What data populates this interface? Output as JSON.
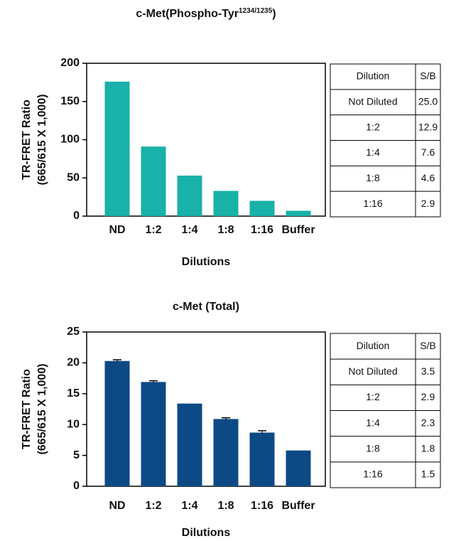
{
  "chart_data": [
    {
      "type": "bar",
      "title": "c-Met(Phospho-Tyr",
      "title_superscript": "1234/1235",
      "title_end": ")",
      "ylabel": [
        "TR-FRET Ratio",
        "(665/615 X 1,000)"
      ],
      "xlabel": "Dilutions",
      "categories": [
        "ND",
        "1:2",
        "1:4",
        "1:8",
        "1:16",
        "Buffer"
      ],
      "values": [
        176,
        91,
        53,
        33,
        20,
        7
      ],
      "color": "#19b1a8",
      "ylim": [
        0,
        200
      ],
      "yticks": [
        0,
        50,
        100,
        150,
        200
      ],
      "table": {
        "header": [
          "Dilution",
          "S/B"
        ],
        "rows": [
          [
            "Not Diluted",
            "25.0"
          ],
          [
            "1:2",
            "12.9"
          ],
          [
            "1:4",
            "7.6"
          ],
          [
            "1:8",
            "4.6"
          ],
          [
            "1:16",
            "2.9"
          ]
        ]
      }
    },
    {
      "type": "bar",
      "title": "c-Met (Total)",
      "ylabel": [
        "TR-FRET Ratio",
        "(665/615 X 1,000)"
      ],
      "xlabel": "Dilutions",
      "categories": [
        "ND",
        "1:2",
        "1:4",
        "1:8",
        "1:16",
        "Buffer"
      ],
      "values": [
        20.3,
        16.9,
        13.4,
        10.9,
        8.7,
        5.8
      ],
      "errors": [
        0.2,
        0.2,
        null,
        0.2,
        0.3,
        null
      ],
      "color": "#0d4a85",
      "ylim": [
        0,
        25
      ],
      "yticks": [
        0,
        5,
        10,
        15,
        20,
        25
      ],
      "table": {
        "header": [
          "Dilution",
          "S/B"
        ],
        "rows": [
          [
            "Not Diluted",
            "3.5"
          ],
          [
            "1:2",
            "2.9"
          ],
          [
            "1:4",
            "2.3"
          ],
          [
            "1:8",
            "1.8"
          ],
          [
            "1:16",
            "1.5"
          ]
        ]
      }
    }
  ]
}
